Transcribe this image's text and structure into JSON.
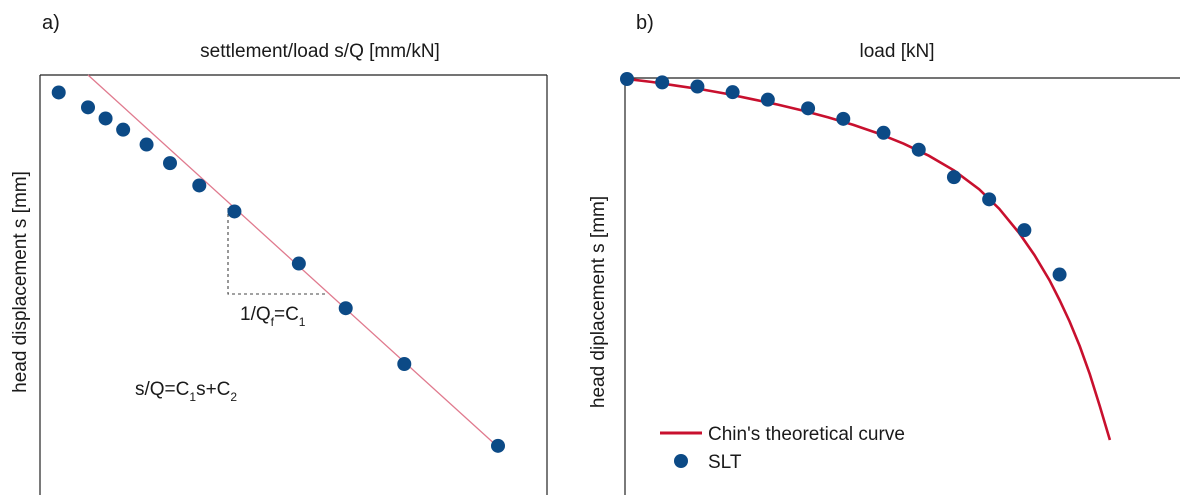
{
  "chart_data": [
    {
      "type": "scatter",
      "panel_label": "a)",
      "xlabel": "settlement/load s/Q [mm/kN]",
      "ylabel": "head displacement s [mm]",
      "x_axis_position": "top",
      "y_axis_inverted": true,
      "grid": false,
      "ticks_shown": false,
      "annotations": {
        "slope_main": "1/Q",
        "slope_sub1": "f",
        "slope_mid": "=C",
        "slope_sub2": "1",
        "eq_a": "s/Q=C",
        "eq_sub1": "1",
        "eq_b": "s+C",
        "eq_sub2": "2"
      },
      "series": [
        {
          "type": "line",
          "color": "#e07a8e",
          "x": [
            0.28,
            0.98
          ],
          "y": [
            0.0,
            1.0
          ]
        },
        {
          "type": "scatter",
          "color": "#0c4a86",
          "x": [
            0.23,
            0.28,
            0.31,
            0.34,
            0.38,
            0.42,
            0.47,
            0.53,
            0.64,
            0.72,
            0.82,
            0.98
          ],
          "y": [
            0.02,
            0.06,
            0.09,
            0.12,
            0.16,
            0.21,
            0.27,
            0.34,
            0.48,
            0.6,
            0.75,
            0.97
          ]
        }
      ]
    },
    {
      "type": "scatter",
      "panel_label": "b)",
      "xlabel": "load [kN]",
      "ylabel": "head diplacement s [mm]",
      "x_axis_position": "top",
      "y_axis_inverted": true,
      "grid": false,
      "ticks_shown": false,
      "legend_position": "bottom-left",
      "series": [
        {
          "name": "Chin's theoretical curve",
          "type": "line",
          "color": "#c8102e",
          "x": [
            0.0,
            0.05,
            0.1,
            0.15,
            0.2,
            0.25,
            0.3,
            0.35,
            0.4,
            0.45,
            0.5,
            0.55,
            0.6,
            0.65,
            0.7,
            0.74,
            0.78,
            0.81,
            0.84,
            0.86,
            0.88,
            0.9,
            0.92,
            0.94,
            0.96
          ],
          "y": [
            0.0,
            0.008,
            0.018,
            0.028,
            0.04,
            0.054,
            0.068,
            0.084,
            0.102,
            0.122,
            0.145,
            0.172,
            0.204,
            0.243,
            0.293,
            0.345,
            0.41,
            0.468,
            0.535,
            0.588,
            0.645,
            0.71,
            0.785,
            0.87,
            0.96
          ]
        },
        {
          "name": "SLT",
          "type": "scatter",
          "color": "#0c4a86",
          "x": [
            0.0,
            0.07,
            0.14,
            0.21,
            0.28,
            0.36,
            0.43,
            0.51,
            0.58,
            0.65,
            0.72,
            0.79,
            0.86
          ],
          "y": [
            0.0,
            0.009,
            0.02,
            0.035,
            0.055,
            0.078,
            0.106,
            0.143,
            0.188,
            0.261,
            0.32,
            0.402,
            0.52
          ]
        }
      ]
    }
  ]
}
